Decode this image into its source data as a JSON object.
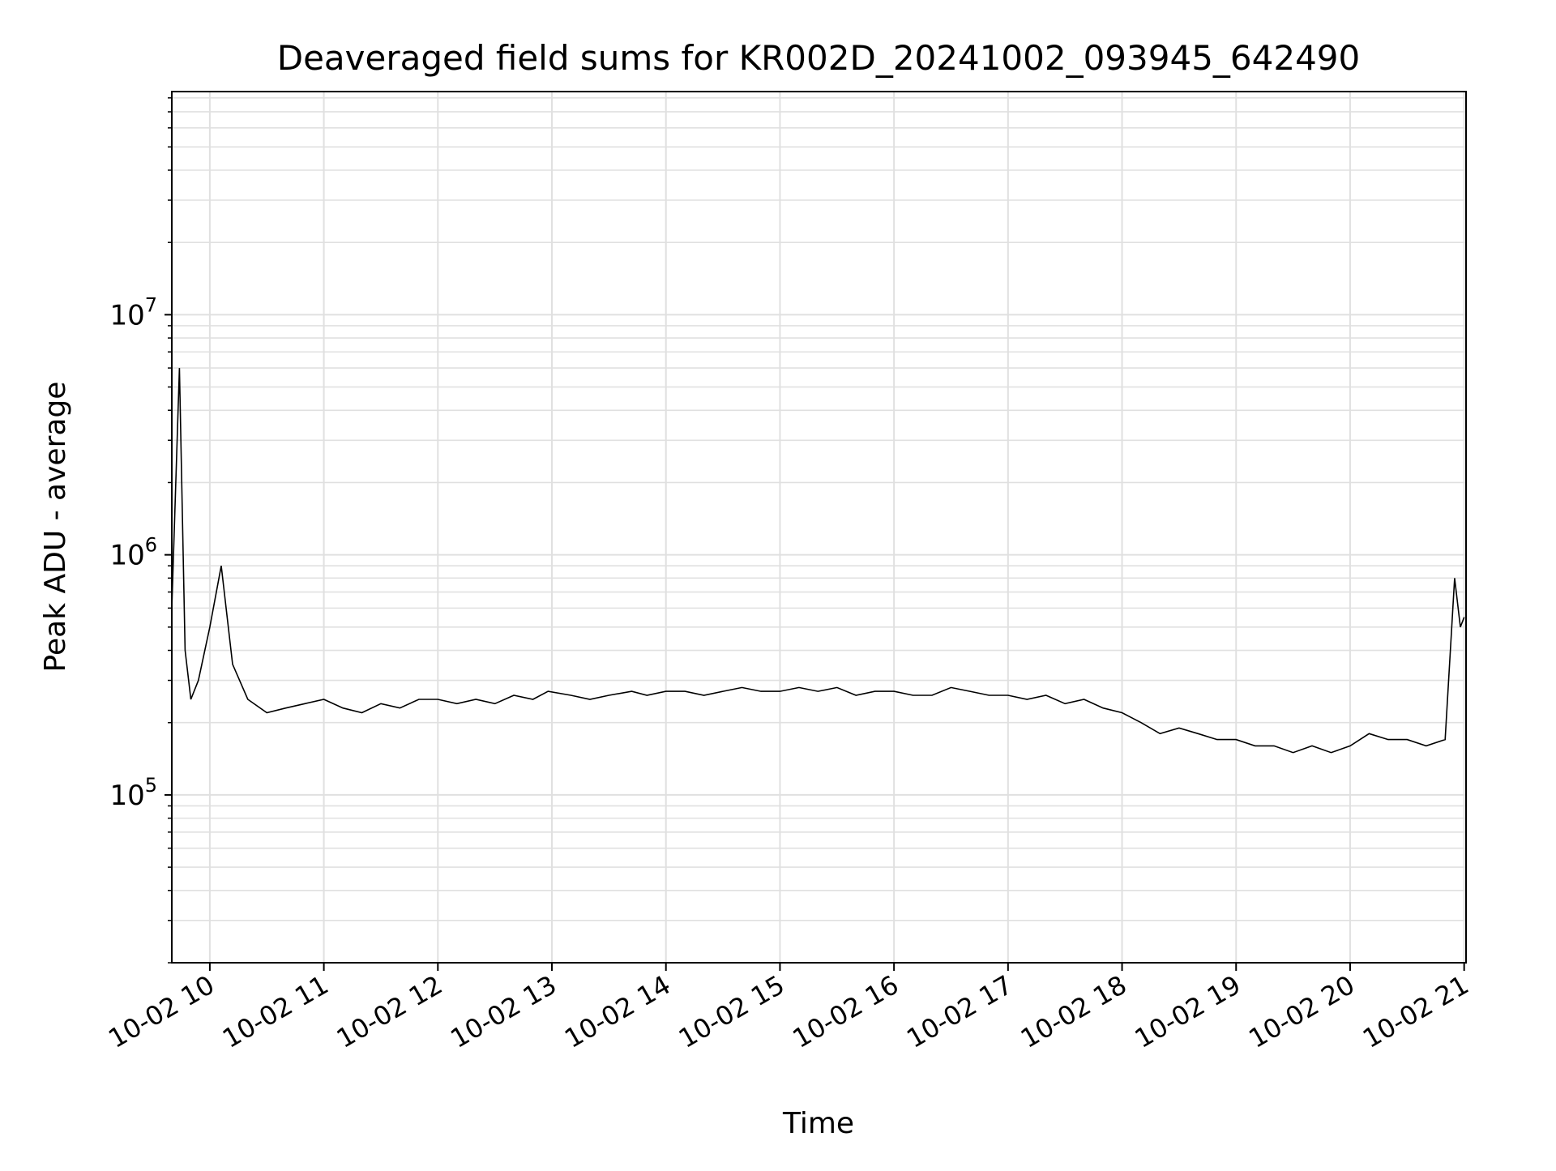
{
  "chart_data": {
    "type": "line",
    "title": "Deaveraged field sums for KR002D_20241002_093945_642490",
    "xlabel": "Time",
    "ylabel": "Peak ADU - average",
    "x_axis": {
      "type": "datetime",
      "range": [
        "2024-10-02 09:40",
        "2024-10-02 21:01"
      ],
      "ticks": [
        {
          "value": "2024-10-02 10:00",
          "label": "10-02 10"
        },
        {
          "value": "2024-10-02 11:00",
          "label": "10-02 11"
        },
        {
          "value": "2024-10-02 12:00",
          "label": "10-02 12"
        },
        {
          "value": "2024-10-02 13:00",
          "label": "10-02 13"
        },
        {
          "value": "2024-10-02 14:00",
          "label": "10-02 14"
        },
        {
          "value": "2024-10-02 15:00",
          "label": "10-02 15"
        },
        {
          "value": "2024-10-02 16:00",
          "label": "10-02 16"
        },
        {
          "value": "2024-10-02 17:00",
          "label": "10-02 17"
        },
        {
          "value": "2024-10-02 18:00",
          "label": "10-02 18"
        },
        {
          "value": "2024-10-02 19:00",
          "label": "10-02 19"
        },
        {
          "value": "2024-10-02 20:00",
          "label": "10-02 20"
        },
        {
          "value": "2024-10-02 21:00",
          "label": "10-02 21"
        }
      ]
    },
    "y_axis": {
      "scale": "log",
      "range": [
        20000,
        85000000
      ],
      "ticks": [
        {
          "value": 100000,
          "base": "10",
          "exp": "5"
        },
        {
          "value": 1000000,
          "base": "10",
          "exp": "6"
        },
        {
          "value": 10000000,
          "base": "10",
          "exp": "7"
        }
      ]
    },
    "grid": true,
    "legend": "none",
    "series_color": "#000000",
    "series": [
      {
        "x": [
          "2024-10-02 09:40",
          "2024-10-02 09:44",
          "2024-10-02 09:47",
          "2024-10-02 09:50",
          "2024-10-02 09:54",
          "2024-10-02 10:00",
          "2024-10-02 10:06",
          "2024-10-02 10:12",
          "2024-10-02 10:20",
          "2024-10-02 10:30",
          "2024-10-02 10:40",
          "2024-10-02 10:50",
          "2024-10-02 11:00",
          "2024-10-02 11:10",
          "2024-10-02 11:20",
          "2024-10-02 11:30",
          "2024-10-02 11:40",
          "2024-10-02 11:50",
          "2024-10-02 12:00",
          "2024-10-02 12:10",
          "2024-10-02 12:20",
          "2024-10-02 12:30",
          "2024-10-02 12:40",
          "2024-10-02 12:50",
          "2024-10-02 12:58",
          "2024-10-02 13:10",
          "2024-10-02 13:20",
          "2024-10-02 13:30",
          "2024-10-02 13:42",
          "2024-10-02 13:50",
          "2024-10-02 14:00",
          "2024-10-02 14:10",
          "2024-10-02 14:20",
          "2024-10-02 14:30",
          "2024-10-02 14:40",
          "2024-10-02 14:50",
          "2024-10-02 15:00",
          "2024-10-02 15:10",
          "2024-10-02 15:20",
          "2024-10-02 15:30",
          "2024-10-02 15:40",
          "2024-10-02 15:50",
          "2024-10-02 16:00",
          "2024-10-02 16:10",
          "2024-10-02 16:20",
          "2024-10-02 16:30",
          "2024-10-02 16:40",
          "2024-10-02 16:50",
          "2024-10-02 17:00",
          "2024-10-02 17:10",
          "2024-10-02 17:20",
          "2024-10-02 17:30",
          "2024-10-02 17:40",
          "2024-10-02 17:50",
          "2024-10-02 18:00",
          "2024-10-02 18:10",
          "2024-10-02 18:20",
          "2024-10-02 18:30",
          "2024-10-02 18:40",
          "2024-10-02 18:50",
          "2024-10-02 19:00",
          "2024-10-02 19:10",
          "2024-10-02 19:20",
          "2024-10-02 19:30",
          "2024-10-02 19:40",
          "2024-10-02 19:50",
          "2024-10-02 20:00",
          "2024-10-02 20:10",
          "2024-10-02 20:20",
          "2024-10-02 20:30",
          "2024-10-02 20:40",
          "2024-10-02 20:50",
          "2024-10-02 20:55",
          "2024-10-02 20:58",
          "2024-10-02 21:00"
        ],
        "y": [
          600000,
          6000000,
          400000,
          250000,
          300000,
          500000,
          900000,
          350000,
          250000,
          220000,
          230000,
          240000,
          250000,
          230000,
          220000,
          240000,
          230000,
          250000,
          250000,
          240000,
          250000,
          240000,
          260000,
          250000,
          270000,
          260000,
          250000,
          260000,
          270000,
          260000,
          270000,
          270000,
          260000,
          270000,
          280000,
          270000,
          270000,
          280000,
          270000,
          280000,
          260000,
          270000,
          270000,
          260000,
          260000,
          280000,
          270000,
          260000,
          260000,
          250000,
          260000,
          240000,
          250000,
          230000,
          220000,
          200000,
          180000,
          190000,
          180000,
          170000,
          170000,
          160000,
          160000,
          150000,
          160000,
          150000,
          160000,
          180000,
          170000,
          170000,
          160000,
          170000,
          800000,
          500000,
          550000
        ]
      }
    ]
  }
}
